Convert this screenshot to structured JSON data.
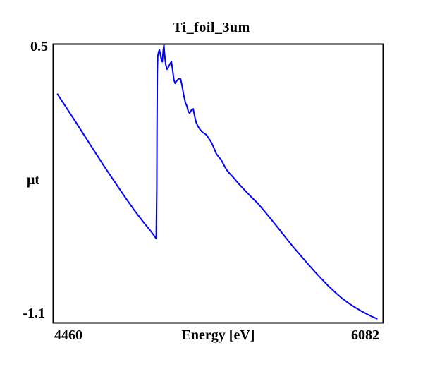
{
  "chart_data": {
    "type": "line",
    "title": "Ti_foil_3um",
    "xlabel": "Energy [eV]",
    "ylabel": "μt",
    "xlim": [
      4460,
      6082
    ],
    "ylim": [
      -1.159,
      0.517
    ],
    "x_ticks": [
      {
        "label": "4460",
        "value": 4460
      },
      {
        "label": "6082",
        "value": 6082
      }
    ],
    "y_ticks": [
      {
        "label": "0.5",
        "value": 0.5
      },
      {
        "label": "-1.1",
        "value": -1.1
      }
    ],
    "grid": false,
    "legend": false,
    "background_color": "#ffffff",
    "axis_color": "#000000",
    "text_color": "#000000",
    "series": [
      {
        "name": "Ti_foil_3um",
        "color": "#0000ff",
        "points": [
          [
            4481,
            0.216
          ],
          [
            4525,
            0.134
          ],
          [
            4570,
            0.05
          ],
          [
            4615,
            -0.036
          ],
          [
            4660,
            -0.122
          ],
          [
            4710,
            -0.216
          ],
          [
            4760,
            -0.308
          ],
          [
            4810,
            -0.398
          ],
          [
            4860,
            -0.484
          ],
          [
            4905,
            -0.556
          ],
          [
            4940,
            -0.608
          ],
          [
            4958,
            -0.638
          ],
          [
            4966,
            -0.652
          ],
          [
            4969,
            -0.35
          ],
          [
            4970,
            0.0
          ],
          [
            4972,
            0.35
          ],
          [
            4974,
            0.445
          ],
          [
            4978,
            0.47
          ],
          [
            4982,
            0.483
          ],
          [
            4987,
            0.452
          ],
          [
            4993,
            0.415
          ],
          [
            4996,
            0.411
          ],
          [
            5001,
            0.48
          ],
          [
            5004,
            0.512
          ],
          [
            5008,
            0.45
          ],
          [
            5013,
            0.395
          ],
          [
            5019,
            0.366
          ],
          [
            5026,
            0.378
          ],
          [
            5034,
            0.398
          ],
          [
            5041,
            0.412
          ],
          [
            5047,
            0.36
          ],
          [
            5053,
            0.305
          ],
          [
            5059,
            0.281
          ],
          [
            5066,
            0.295
          ],
          [
            5076,
            0.308
          ],
          [
            5086,
            0.308
          ],
          [
            5093,
            0.27
          ],
          [
            5101,
            0.215
          ],
          [
            5110,
            0.165
          ],
          [
            5117,
            0.145
          ],
          [
            5124,
            0.112
          ],
          [
            5131,
            0.102
          ],
          [
            5140,
            0.122
          ],
          [
            5148,
            0.128
          ],
          [
            5156,
            0.08
          ],
          [
            5163,
            0.045
          ],
          [
            5172,
            0.022
          ],
          [
            5183,
            0.002
          ],
          [
            5193,
            -0.012
          ],
          [
            5203,
            -0.02
          ],
          [
            5214,
            -0.03
          ],
          [
            5222,
            -0.045
          ],
          [
            5238,
            -0.075
          ],
          [
            5249,
            -0.105
          ],
          [
            5262,
            -0.143
          ],
          [
            5276,
            -0.165
          ],
          [
            5283,
            -0.173
          ],
          [
            5297,
            -0.205
          ],
          [
            5310,
            -0.235
          ],
          [
            5328,
            -0.262
          ],
          [
            5342,
            -0.28
          ],
          [
            5370,
            -0.32
          ],
          [
            5394,
            -0.352
          ],
          [
            5430,
            -0.398
          ],
          [
            5465,
            -0.44
          ],
          [
            5500,
            -0.49
          ],
          [
            5535,
            -0.542
          ],
          [
            5570,
            -0.595
          ],
          [
            5605,
            -0.65
          ],
          [
            5640,
            -0.703
          ],
          [
            5675,
            -0.752
          ],
          [
            5710,
            -0.802
          ],
          [
            5745,
            -0.85
          ],
          [
            5780,
            -0.896
          ],
          [
            5815,
            -0.94
          ],
          [
            5850,
            -0.98
          ],
          [
            5882,
            -1.014
          ],
          [
            5915,
            -1.043
          ],
          [
            5947,
            -1.068
          ],
          [
            5977,
            -1.09
          ],
          [
            6005,
            -1.108
          ],
          [
            6030,
            -1.123
          ],
          [
            6051,
            -1.134
          ]
        ]
      }
    ]
  }
}
